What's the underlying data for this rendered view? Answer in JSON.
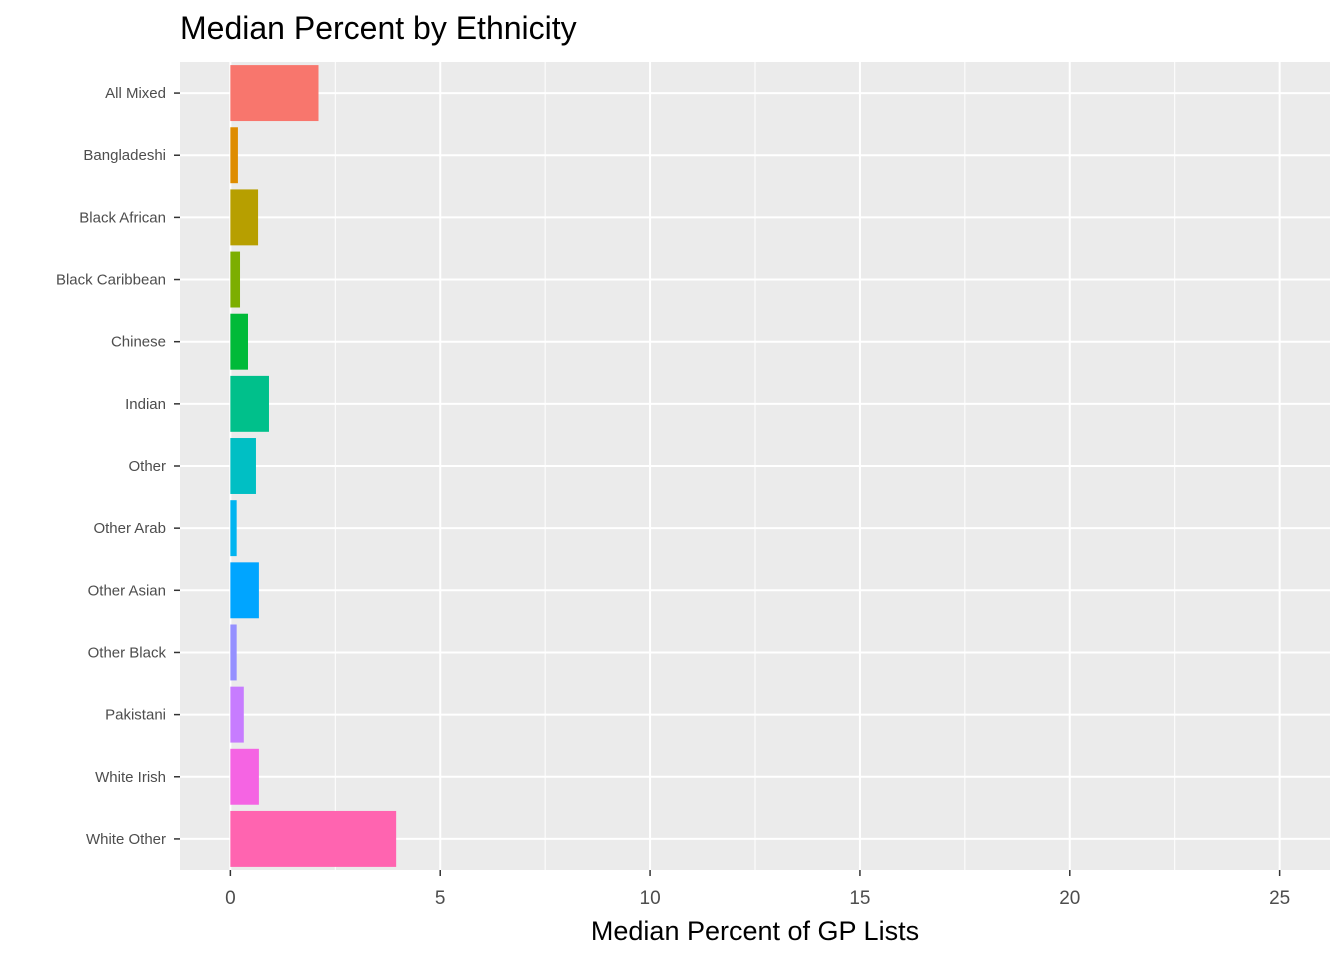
{
  "chart_data": {
    "type": "bar",
    "orientation": "horizontal",
    "title": "Median Percent by Ethnicity",
    "xlabel": "Median Percent of GP Lists",
    "ylabel": "",
    "xlim": [
      -1.2,
      26.2
    ],
    "x_ticks": [
      0,
      5,
      10,
      15,
      20,
      25
    ],
    "x_tick_labels": [
      "0",
      "5",
      "10",
      "15",
      "20",
      "25"
    ],
    "grid": true,
    "legend": "none",
    "categories": [
      "All Mixed",
      "Bangladeshi",
      "Black African",
      "Black Caribbean",
      "Chinese",
      "Indian",
      "Other",
      "Other Arab",
      "Other Asian",
      "Other Black",
      "Pakistani",
      "White Irish",
      "White Other"
    ],
    "values": [
      2.1,
      0.18,
      0.66,
      0.23,
      0.42,
      0.92,
      0.61,
      0.15,
      0.68,
      0.15,
      0.32,
      0.68,
      3.95
    ],
    "colors": [
      "#F8766D",
      "#DE8C00",
      "#B79F00",
      "#7CAE00",
      "#00BA38",
      "#00C08B",
      "#00BFC4",
      "#00B4F0",
      "#00A5FF",
      "#9590FF",
      "#C77CFF",
      "#F564E3",
      "#FF64B0"
    ],
    "panel_background": "#EBEBEB",
    "gridline_color": "#FFFFFF"
  }
}
